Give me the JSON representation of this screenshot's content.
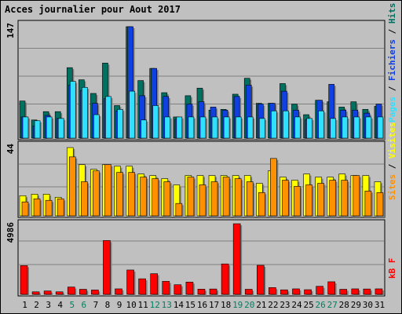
{
  "chart_data": {
    "title": "Acces journalier pour Aout 2017",
    "type": "bar",
    "days": [
      "1",
      "2",
      "3",
      "4",
      "5",
      "6",
      "7",
      "8",
      "9",
      "10",
      "11",
      "12",
      "13",
      "14",
      "15",
      "16",
      "17",
      "18",
      "19",
      "20",
      "21",
      "22",
      "23",
      "24",
      "25",
      "26",
      "27",
      "28",
      "29",
      "30",
      "31"
    ],
    "weekend_days": [
      "5",
      "6",
      "12",
      "13",
      "19",
      "20",
      "26",
      "27"
    ],
    "colors": {
      "background": "#c0c0c0",
      "title": "#0000cc",
      "weekday_label": "#000000",
      "weekend_label": "#008060",
      "hits": "#007060",
      "files": "#1040e0",
      "pages": "#30e0ff",
      "visits": "#ffff00",
      "sites": "#ff9000",
      "kb": "#ff0000"
    },
    "panels": [
      {
        "id": "hits",
        "ymax_label": "147",
        "ylim": [
          0,
          147
        ],
        "legend": {
          "pages": "Pages",
          "files": "Fichiers",
          "hits": "Hits",
          "sep": "/"
        },
        "series": [
          {
            "name": "Hits",
            "values": [
              49,
              24,
              35,
              35,
              93,
              77,
              59,
              99,
              43,
              147,
              76,
              92,
              60,
              28,
              56,
              66,
              37,
              38,
              58,
              79,
              46,
              46,
              72,
              45,
              31,
              50,
              48,
              41,
              48,
              38,
              42
            ]
          },
          {
            "name": "Fichiers",
            "values": [
              28,
              16,
              30,
              26,
              70,
              63,
              46,
              52,
              36,
              147,
              56,
              92,
              55,
              25,
              45,
              48,
              41,
              37,
              55,
              70,
              45,
              46,
              62,
              37,
              24,
              50,
              71,
              37,
              37,
              33,
              45
            ]
          },
          {
            "name": "Pages",
            "values": [
              28,
              23,
              28,
              26,
              75,
              67,
              31,
              55,
              38,
              62,
              24,
              43,
              28,
              28,
              28,
              28,
              28,
              28,
              28,
              28,
              26,
              36,
              36,
              28,
              26,
              36,
              26,
              28,
              28,
              28,
              28
            ]
          }
        ]
      },
      {
        "id": "visits",
        "ymax_label": "44",
        "ylim": [
          0,
          44
        ],
        "legend": {
          "sites": "Sites",
          "visits": "Visites",
          "sep": "/"
        },
        "series": [
          {
            "name": "Visites",
            "values": [
              13,
              14,
              14,
              12,
              44,
              33,
              30,
              33,
              32,
              32,
              27,
              26,
              24,
              20,
              26,
              26,
              26,
              26,
              26,
              26,
              21,
              29,
              25,
              23,
              27,
              25,
              25,
              27,
              26,
              26,
              22
            ]
          },
          {
            "name": "Sites",
            "values": [
              9,
              11,
              10,
              11,
              38,
              22,
              29,
              33,
              28,
              28,
              25,
              24,
              22,
              8,
              25,
              20,
              22,
              25,
              24,
              22,
              15,
              37,
              23,
              19,
              20,
              21,
              23,
              23,
              26,
              16,
              15
            ]
          }
        ]
      },
      {
        "id": "kb",
        "ymax_label": "4986",
        "ylim": [
          0,
          4986
        ],
        "legend": {
          "kb": "kB F"
        },
        "series": [
          {
            "name": "kB F",
            "values": [
              2030,
              180,
              240,
              180,
              520,
              360,
              310,
              3800,
              390,
              1720,
              1100,
              1460,
              920,
              680,
              870,
              370,
              380,
              2150,
              4986,
              360,
              2050,
              480,
              320,
              390,
              330,
              570,
              890,
              360,
              390,
              380,
              390
            ]
          }
        ]
      }
    ]
  }
}
